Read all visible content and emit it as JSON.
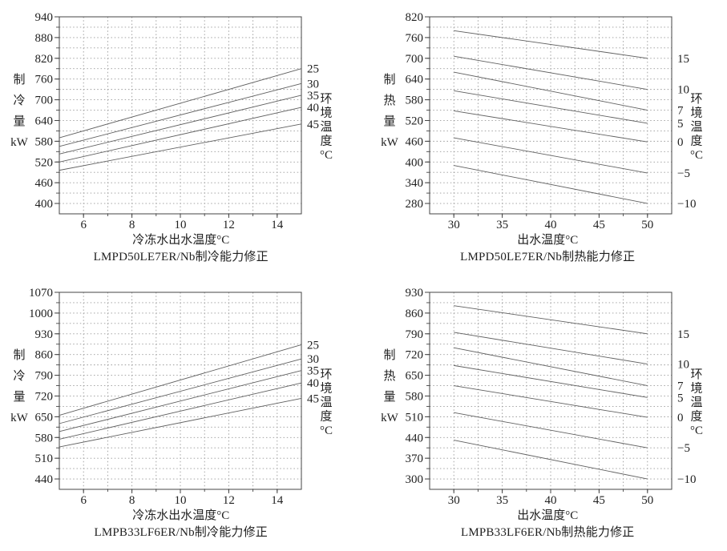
{
  "page": {
    "background": "#ffffff"
  },
  "colors": {
    "axis": "#444444",
    "grid": "#999999",
    "series_line": "#606060",
    "text": "#1f1f1f"
  },
  "chart_data": [
    {
      "type": "line",
      "title": "LMPD50LE7ER/Nb制冷能力修正",
      "xlabel": "冷冻水出水温度°C",
      "ylabel": "制冷量 kW",
      "ylabel_stack": [
        "制",
        "冷",
        "量",
        "kW"
      ],
      "legend_title": "环境温度°C",
      "legend_title_stack": [
        "环",
        "境",
        "温",
        "度",
        "°C"
      ],
      "legend_position": "right",
      "grid": true,
      "x_range": [
        5,
        15
      ],
      "x_ticks": [
        6,
        8,
        10,
        12,
        14
      ],
      "x_grid_step": 1,
      "y_range": [
        370,
        940
      ],
      "y_ticks": [
        400,
        460,
        520,
        580,
        640,
        700,
        760,
        820,
        880,
        940
      ],
      "y_grid_step": 30,
      "series": [
        {
          "name": "25",
          "points": [
            [
              5,
              590
            ],
            [
              15,
              790
            ]
          ]
        },
        {
          "name": "30",
          "points": [
            [
              5,
              565
            ],
            [
              15,
              747
            ]
          ]
        },
        {
          "name": "35",
          "points": [
            [
              5,
              543
            ],
            [
              15,
              713
            ]
          ]
        },
        {
          "name": "40",
          "points": [
            [
              5,
              520
            ],
            [
              15,
              678
            ]
          ]
        },
        {
          "name": "45",
          "points": [
            [
              5,
              496
            ],
            [
              15,
              630
            ]
          ]
        }
      ]
    },
    {
      "type": "line",
      "title": "LMPD50LE7ER/Nb制热能力修正",
      "xlabel": "出水温度°C",
      "ylabel": "制热量 kW",
      "ylabel_stack": [
        "制",
        "热",
        "量",
        "kW"
      ],
      "legend_title": "环境温度°C",
      "legend_title_stack": [
        "环",
        "境",
        "温",
        "度",
        "°C"
      ],
      "legend_position": "right",
      "grid": true,
      "x_range": [
        27.5,
        52.5
      ],
      "x_ticks": [
        30,
        35,
        40,
        45,
        50
      ],
      "x_grid_step": 2.5,
      "y_range": [
        250,
        820
      ],
      "y_ticks": [
        280,
        340,
        400,
        460,
        520,
        580,
        640,
        700,
        760,
        820
      ],
      "y_grid_step": 30,
      "series": [
        {
          "name": "15",
          "points": [
            [
              30,
              780
            ],
            [
              50,
              700
            ]
          ]
        },
        {
          "name": "10",
          "points": [
            [
              30,
              706
            ],
            [
              50,
              610
            ]
          ]
        },
        {
          "name": "7",
          "points": [
            [
              30,
              660
            ],
            [
              50,
              550
            ]
          ]
        },
        {
          "name": "5",
          "points": [
            [
              30,
              606
            ],
            [
              50,
              512
            ]
          ]
        },
        {
          "name": "0",
          "points": [
            [
              30,
              548
            ],
            [
              50,
              458
            ]
          ]
        },
        {
          "name": "−5",
          "points": [
            [
              30,
              470
            ],
            [
              50,
              368
            ]
          ]
        },
        {
          "name": "−10",
          "points": [
            [
              30,
              390
            ],
            [
              50,
              280
            ]
          ]
        }
      ]
    },
    {
      "type": "line",
      "title": "LMPB33LF6ER/Nb制冷能力修正",
      "xlabel": "冷冻水出水温度°C",
      "ylabel": "制冷量 kW",
      "ylabel_stack": [
        "制",
        "冷",
        "量",
        "kW"
      ],
      "legend_title": "环境温度°C",
      "legend_title_stack": [
        "环",
        "境",
        "温",
        "度",
        "°C"
      ],
      "legend_position": "right",
      "grid": true,
      "x_range": [
        5,
        15
      ],
      "x_ticks": [
        6,
        8,
        10,
        12,
        14
      ],
      "x_grid_step": 1,
      "y_range": [
        405,
        1070
      ],
      "y_ticks": [
        440,
        510,
        580,
        650,
        720,
        790,
        860,
        930,
        1000,
        1070
      ],
      "y_grid_step": 35,
      "series": [
        {
          "name": "25",
          "points": [
            [
              5,
              655
            ],
            [
              15,
              893
            ]
          ]
        },
        {
          "name": "30",
          "points": [
            [
              5,
              627
            ],
            [
              15,
              845
            ]
          ]
        },
        {
          "name": "35",
          "points": [
            [
              5,
              600
            ],
            [
              15,
              806
            ]
          ]
        },
        {
          "name": "40",
          "points": [
            [
              5,
              574
            ],
            [
              15,
              764
            ]
          ]
        },
        {
          "name": "45",
          "points": [
            [
              5,
              548
            ],
            [
              15,
              712
            ]
          ]
        }
      ]
    },
    {
      "type": "line",
      "title": "LMPB33LF6ER/Nb制热能力修正",
      "xlabel": "出水温度°C",
      "ylabel": "制热量 kW",
      "ylabel_stack": [
        "制",
        "热",
        "量",
        "kW"
      ],
      "legend_title": "环境温度°C",
      "legend_title_stack": [
        "环",
        "境",
        "温",
        "度",
        "°C"
      ],
      "legend_position": "right",
      "grid": true,
      "x_range": [
        27.5,
        52.5
      ],
      "x_ticks": [
        30,
        35,
        40,
        45,
        50
      ],
      "x_grid_step": 2.5,
      "y_range": [
        265,
        930
      ],
      "y_ticks": [
        300,
        370,
        440,
        510,
        580,
        650,
        720,
        790,
        860,
        930
      ],
      "y_grid_step": 35,
      "series": [
        {
          "name": "15",
          "points": [
            [
              30,
              885
            ],
            [
              50,
              790
            ]
          ]
        },
        {
          "name": "10",
          "points": [
            [
              30,
              795
            ],
            [
              50,
              688
            ]
          ]
        },
        {
          "name": "7",
          "points": [
            [
              30,
              743
            ],
            [
              50,
              615
            ]
          ]
        },
        {
          "name": "5",
          "points": [
            [
              30,
              683
            ],
            [
              50,
              575
            ]
          ]
        },
        {
          "name": "0",
          "points": [
            [
              30,
              615
            ],
            [
              50,
              508
            ]
          ]
        },
        {
          "name": "−5",
          "points": [
            [
              30,
              524
            ],
            [
              50,
              405
            ]
          ]
        },
        {
          "name": "−10",
          "points": [
            [
              30,
              431
            ],
            [
              50,
              300
            ]
          ]
        }
      ]
    }
  ]
}
